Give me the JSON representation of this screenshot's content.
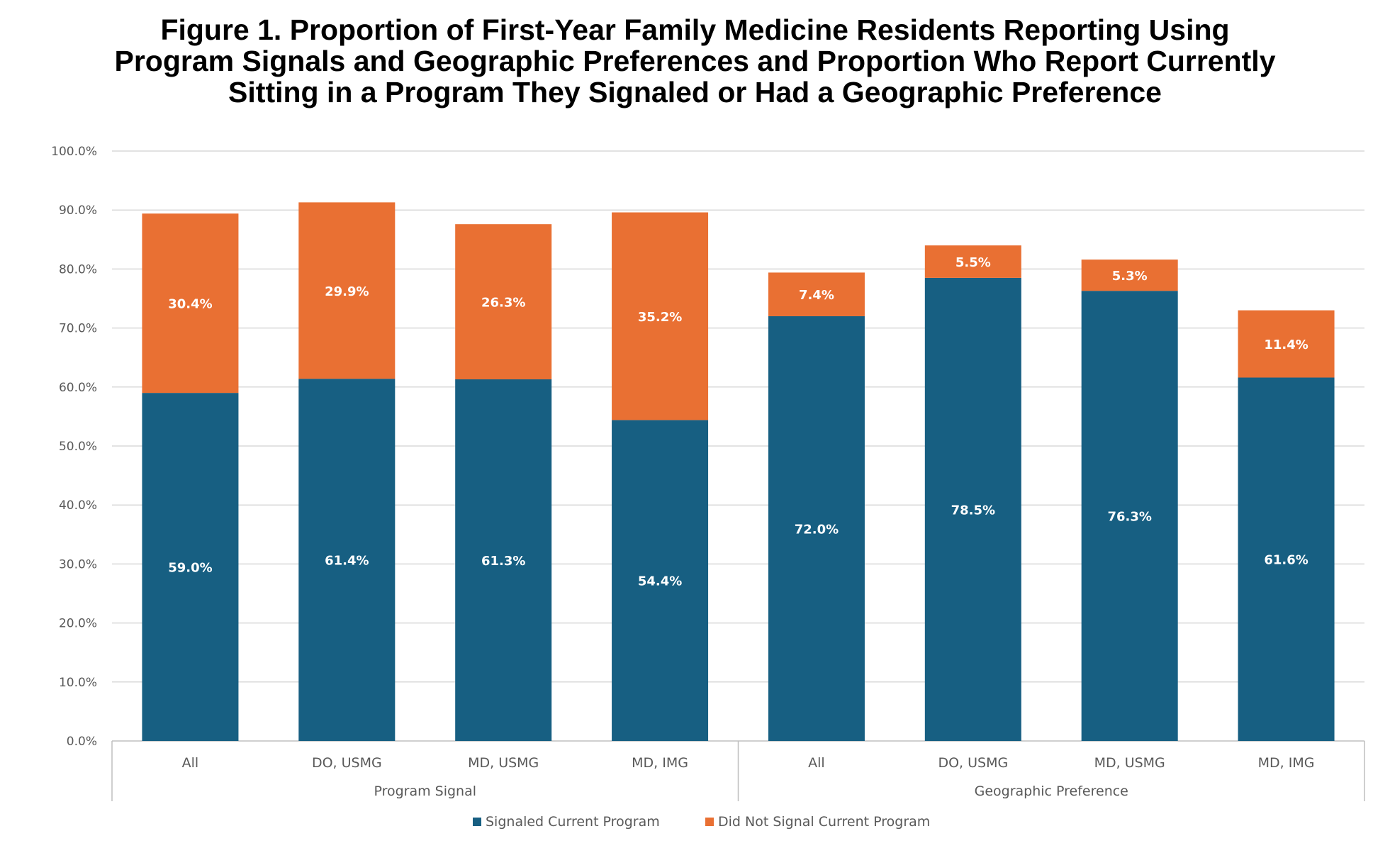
{
  "chart_data": {
    "type": "bar",
    "stacked": true,
    "title_lines": [
      "Figure 1. Proportion of First-Year Family Medicine Residents Reporting Using",
      "Program Signals and Geographic Preferences and Proportion Who Report Currently",
      "Sitting in a Program They Signaled or Had a Geographic Preference"
    ],
    "title": "Figure 1. Proportion of First-Year Family Medicine Residents Reporting Using Program Signals and Geographic Preferences and Proportion Who Report Currently Sitting in a Program They Signaled or Had a Geographic Preference",
    "xlabel": "",
    "ylabel": "",
    "ylim": [
      0,
      100
    ],
    "yticks": [
      0,
      10,
      20,
      30,
      40,
      50,
      60,
      70,
      80,
      90,
      100
    ],
    "ytick_labels": [
      "0.0%",
      "10.0%",
      "20.0%",
      "30.0%",
      "40.0%",
      "50.0%",
      "60.0%",
      "70.0%",
      "80.0%",
      "90.0%",
      "100.0%"
    ],
    "grid": true,
    "legend_position": "bottom",
    "groups": [
      {
        "label": "Program Signal",
        "categories": [
          "All",
          "DO, USMG",
          "MD, USMG",
          "MD, IMG"
        ]
      },
      {
        "label": "Geographic Preference",
        "categories": [
          "All",
          "DO, USMG",
          "MD, USMG",
          "MD, IMG"
        ]
      }
    ],
    "series": [
      {
        "name": "Signaled Current Program",
        "color": "#175f82",
        "values": [
          59.0,
          61.4,
          61.3,
          54.4,
          72.0,
          78.5,
          76.3,
          61.6
        ],
        "labels": [
          "59.0%",
          "61.4%",
          "61.3%",
          "54.4%",
          "72.0%",
          "78.5%",
          "76.3%",
          "61.6%"
        ]
      },
      {
        "name": "Did Not Signal Current Program",
        "color": "#e97033",
        "values": [
          30.4,
          29.9,
          26.3,
          35.2,
          7.4,
          5.5,
          5.3,
          11.4
        ],
        "labels": [
          "30.4%",
          "29.9%",
          "26.3%",
          "35.2%",
          "7.4%",
          "5.5%",
          "5.3%",
          "11.4%"
        ]
      }
    ]
  }
}
